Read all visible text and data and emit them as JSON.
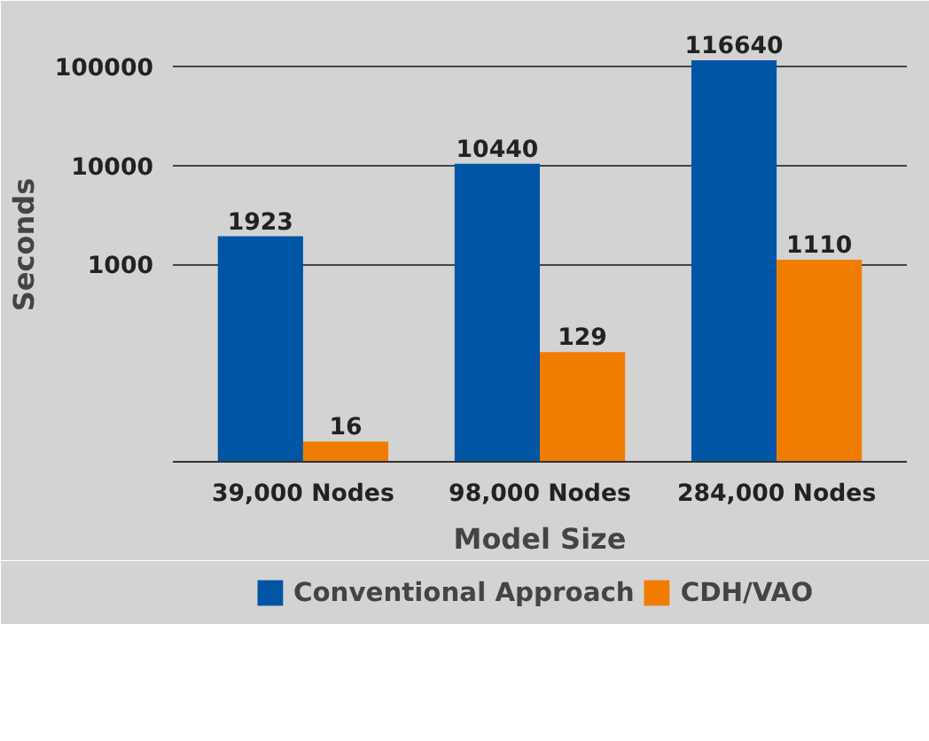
{
  "chart_data": {
    "type": "bar",
    "xlabel": "Model Size",
    "ylabel": "Seconds",
    "categories": [
      "39,000 Nodes",
      "98,000 Nodes",
      "284,000 Nodes"
    ],
    "series": [
      {
        "name": "Conventional Approach",
        "color": "#0055a4",
        "values": [
          1923,
          10440,
          116640
        ]
      },
      {
        "name": "CDH/VAO",
        "color": "#f07d00",
        "values": [
          16,
          129,
          1110
        ]
      }
    ],
    "log": "y",
    "ylim": [
      10,
      250000
    ],
    "yticks": [
      1000,
      10000,
      100000
    ],
    "grid": "y",
    "legend": "bottom",
    "data_labels": true
  }
}
